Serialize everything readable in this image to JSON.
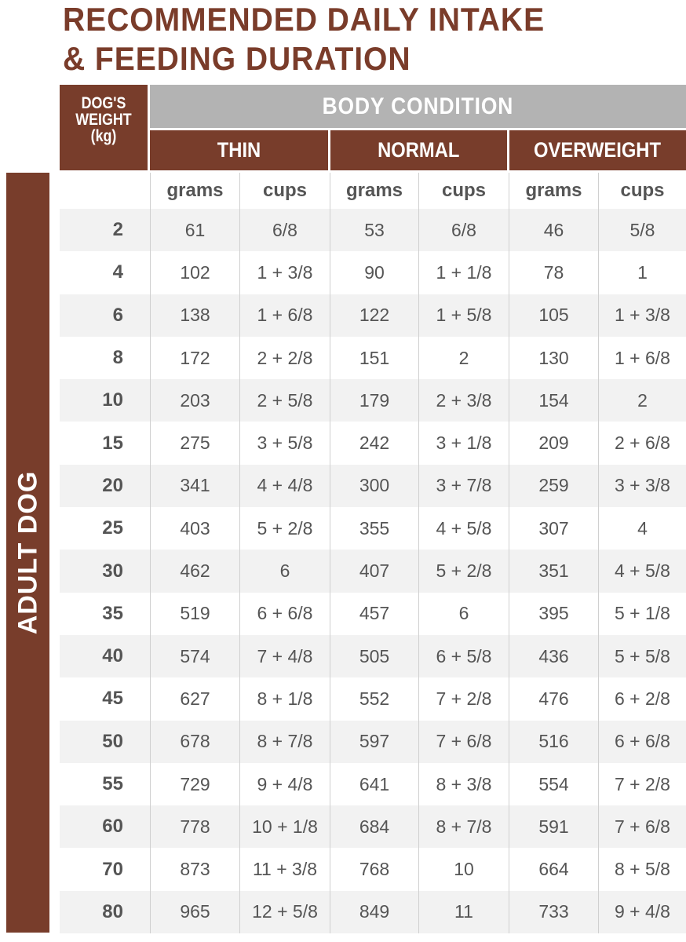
{
  "title": {
    "line1": "RECOMMENDED DAILY INTAKE",
    "line2": "& FEEDING DURATION"
  },
  "header": {
    "weight_line1": "DOG'S",
    "weight_line2": "WEIGHT",
    "weight_line3": "(kg)",
    "body_condition": "BODY CONDITION",
    "conditions": [
      "THIN",
      "NORMAL",
      "OVERWEIGHT"
    ],
    "units": [
      "grams",
      "cups",
      "grams",
      "cups",
      "grams",
      "cups"
    ]
  },
  "side_label": "ADULT DOG",
  "colors": {
    "brown": "#783d2b",
    "gray_header": "#b3b3b3",
    "row_alt": "#f2f2f2"
  },
  "rows": [
    [
      "2",
      "61",
      "6/8",
      "53",
      "6/8",
      "46",
      "5/8"
    ],
    [
      "4",
      "102",
      "1 + 3/8",
      "90",
      "1 + 1/8",
      "78",
      "1"
    ],
    [
      "6",
      "138",
      "1 + 6/8",
      "122",
      "1 + 5/8",
      "105",
      "1 + 3/8"
    ],
    [
      "8",
      "172",
      "2 + 2/8",
      "151",
      "2",
      "130",
      "1 + 6/8"
    ],
    [
      "10",
      "203",
      "2 + 5/8",
      "179",
      "2 + 3/8",
      "154",
      "2"
    ],
    [
      "15",
      "275",
      "3 + 5/8",
      "242",
      "3 + 1/8",
      "209",
      "2 + 6/8"
    ],
    [
      "20",
      "341",
      "4 + 4/8",
      "300",
      "3 + 7/8",
      "259",
      "3 + 3/8"
    ],
    [
      "25",
      "403",
      "5 + 2/8",
      "355",
      "4 + 5/8",
      "307",
      "4"
    ],
    [
      "30",
      "462",
      "6",
      "407",
      "5 + 2/8",
      "351",
      "4 + 5/8"
    ],
    [
      "35",
      "519",
      "6 + 6/8",
      "457",
      "6",
      "395",
      "5 + 1/8"
    ],
    [
      "40",
      "574",
      "7 + 4/8",
      "505",
      "6 + 5/8",
      "436",
      "5 + 5/8"
    ],
    [
      "45",
      "627",
      "8 + 1/8",
      "552",
      "7 + 2/8",
      "476",
      "6 + 2/8"
    ],
    [
      "50",
      "678",
      "8 + 7/8",
      "597",
      "7 + 6/8",
      "516",
      "6 + 6/8"
    ],
    [
      "55",
      "729",
      "9 + 4/8",
      "641",
      "8 + 3/8",
      "554",
      "7 + 2/8"
    ],
    [
      "60",
      "778",
      "10 + 1/8",
      "684",
      "8 + 7/8",
      "591",
      "7 + 6/8"
    ],
    [
      "70",
      "873",
      "11 + 3/8",
      "768",
      "10",
      "664",
      "8 + 5/8"
    ],
    [
      "80",
      "965",
      "12 + 5/8",
      "849",
      "11",
      "733",
      "9 + 4/8"
    ]
  ]
}
